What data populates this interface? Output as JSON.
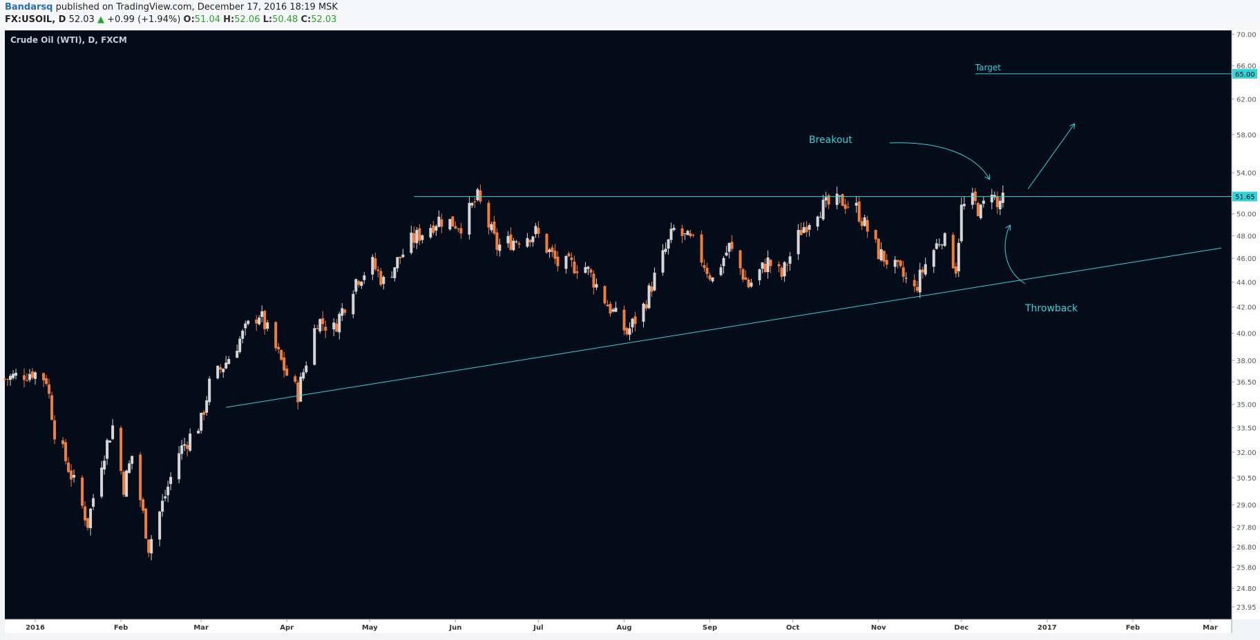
{
  "header": {
    "author": "Bandarsq",
    "published": " published on TradingView.com, December 17, 2016 18:19 MSK",
    "symbol": "FX:USOIL, D",
    "last": "52.03",
    "arrow": "▲",
    "change": "+0.99 (+1.94%)",
    "o_label": "O:",
    "o_value": "51.04",
    "h_label": "H:",
    "h_value": "52.06",
    "l_label": "L:",
    "l_value": "50.48",
    "c_label": "C:",
    "c_value": "52.03"
  },
  "colors": {
    "background": "#050c19",
    "up_candle": "#d6d6d6",
    "down_candle": "#f07e3a",
    "annotation": "#35d3d6",
    "axis_text": "#555555"
  },
  "chart_data": {
    "type": "candlestick",
    "title": "Crude Oil (WTI), D, FXCM",
    "y_scale": "log",
    "ylim": [
      23.4,
      70.5
    ],
    "y_ticks": [
      "70.00",
      "66.00",
      "62.00",
      "58.00",
      "54.00",
      "50.00",
      "48.00",
      "46.00",
      "44.00",
      "42.00",
      "40.00",
      "38.00",
      "36.50",
      "35.00",
      "33.50",
      "32.00",
      "30.50",
      "29.00",
      "27.80",
      "26.80",
      "25.80",
      "24.80",
      "23.95"
    ],
    "x_ticks": [
      "2016",
      "Feb",
      "Mar",
      "Apr",
      "May",
      "Jun",
      "Jul",
      "Aug",
      "Sep",
      "Oct",
      "Nov",
      "Dec",
      "2017",
      "Feb",
      "Mar"
    ],
    "price_path_closes": [
      {
        "date": "2015-12-21",
        "value": 36.7
      },
      {
        "date": "2015-12-31",
        "value": 37.2
      },
      {
        "date": "2016-01-05",
        "value": 36.7
      },
      {
        "date": "2016-01-08",
        "value": 33.3
      },
      {
        "date": "2016-01-20",
        "value": 28.0
      },
      {
        "date": "2016-01-25",
        "value": 31.5
      },
      {
        "date": "2016-01-29",
        "value": 33.6
      },
      {
        "date": "2016-02-02",
        "value": 30.0
      },
      {
        "date": "2016-02-05",
        "value": 31.8
      },
      {
        "date": "2016-02-11",
        "value": 26.8
      },
      {
        "date": "2016-02-17",
        "value": 29.5
      },
      {
        "date": "2016-02-22",
        "value": 32.0
      },
      {
        "date": "2016-03-01",
        "value": 33.9
      },
      {
        "date": "2016-03-04",
        "value": 36.3
      },
      {
        "date": "2016-03-10",
        "value": 37.9
      },
      {
        "date": "2016-03-18",
        "value": 40.5
      },
      {
        "date": "2016-03-22",
        "value": 41.5
      },
      {
        "date": "2016-04-01",
        "value": 37.0
      },
      {
        "date": "2016-04-05",
        "value": 35.7
      },
      {
        "date": "2016-04-12",
        "value": 41.0
      },
      {
        "date": "2016-04-18",
        "value": 40.3
      },
      {
        "date": "2016-04-26",
        "value": 44.2
      },
      {
        "date": "2016-05-02",
        "value": 45.5
      },
      {
        "date": "2016-05-06",
        "value": 44.0
      },
      {
        "date": "2016-05-16",
        "value": 47.5
      },
      {
        "date": "2016-05-26",
        "value": 49.5
      },
      {
        "date": "2016-06-03",
        "value": 49.0
      },
      {
        "date": "2016-06-09",
        "value": 51.5
      },
      {
        "date": "2016-06-16",
        "value": 47.0
      },
      {
        "date": "2016-06-24",
        "value": 47.8
      },
      {
        "date": "2016-06-30",
        "value": 48.3
      },
      {
        "date": "2016-07-08",
        "value": 45.5
      },
      {
        "date": "2016-07-18",
        "value": 45.3
      },
      {
        "date": "2016-07-26",
        "value": 42.2
      },
      {
        "date": "2016-08-02",
        "value": 40.0
      },
      {
        "date": "2016-08-08",
        "value": 42.0
      },
      {
        "date": "2016-08-19",
        "value": 48.5
      },
      {
        "date": "2016-08-26",
        "value": 47.3
      },
      {
        "date": "2016-09-02",
        "value": 44.2
      },
      {
        "date": "2016-09-08",
        "value": 47.0
      },
      {
        "date": "2016-09-15",
        "value": 43.7
      },
      {
        "date": "2016-09-22",
        "value": 45.7
      },
      {
        "date": "2016-09-27",
        "value": 44.5
      },
      {
        "date": "2016-10-04",
        "value": 48.5
      },
      {
        "date": "2016-10-10",
        "value": 50.5
      },
      {
        "date": "2016-10-19",
        "value": 51.2
      },
      {
        "date": "2016-10-24",
        "value": 50.5
      },
      {
        "date": "2016-11-01",
        "value": 46.5
      },
      {
        "date": "2016-11-09",
        "value": 44.7
      },
      {
        "date": "2016-11-14",
        "value": 43.3
      },
      {
        "date": "2016-11-18",
        "value": 45.5
      },
      {
        "date": "2016-11-24",
        "value": 48.0
      },
      {
        "date": "2016-11-29",
        "value": 45.2
      },
      {
        "date": "2016-12-01",
        "value": 50.5
      },
      {
        "date": "2016-12-05",
        "value": 51.2
      },
      {
        "date": "2016-12-08",
        "value": 50.2
      },
      {
        "date": "2016-12-12",
        "value": 52.5
      },
      {
        "date": "2016-12-14",
        "value": 50.5
      },
      {
        "date": "2016-12-16",
        "value": 52.03
      }
    ],
    "horizontal_lines": [
      {
        "label": "Target",
        "price": 65.0,
        "from_date": "2016-12-06",
        "to_date": "2017-03-05"
      },
      {
        "price": 51.65,
        "from_date": "2016-05-17",
        "to_date": "2017-03-05"
      }
    ],
    "trend_line": {
      "from": {
        "date": "2016-03-10",
        "price": 34.8
      },
      "to": {
        "date": "2017-03-05",
        "price": 46.9
      }
    },
    "price_tags": [
      "65.00",
      "51.65"
    ],
    "annotations": [
      "Breakout",
      "Throwback",
      "Target"
    ],
    "grid": false
  }
}
